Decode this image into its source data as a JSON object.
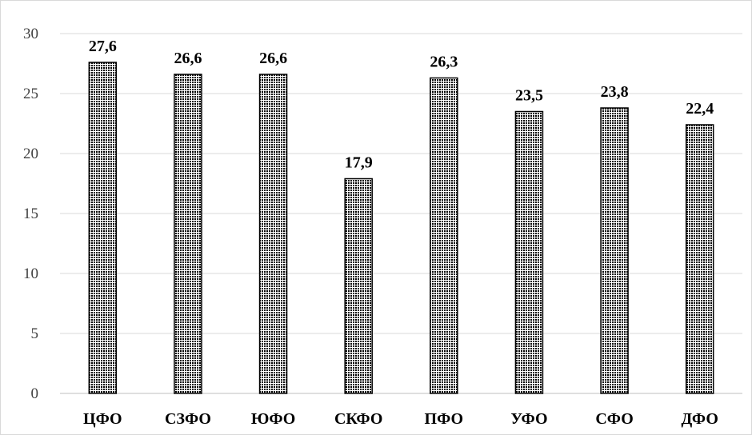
{
  "chart_data": {
    "type": "bar",
    "categories": [
      "ЦФО",
      "СЗФО",
      "ЮФО",
      "СКФО",
      "ПФО",
      "УФО",
      "СФО",
      "ДФО"
    ],
    "values": [
      27.6,
      26.6,
      26.6,
      17.9,
      26.3,
      23.5,
      23.8,
      22.4
    ],
    "value_labels": [
      "27,6",
      "26,6",
      "26,6",
      "17,9",
      "26,3",
      "23,5",
      "23,8",
      "22,4"
    ],
    "yticks": [
      "0",
      "5",
      "10",
      "15",
      "20",
      "25",
      "30"
    ],
    "ylim": [
      0,
      30
    ],
    "grid": true,
    "legend": false,
    "title": "",
    "xlabel": "",
    "ylabel": "",
    "colors": {
      "bar_fill": "#000000",
      "bar_pattern_bg": "#ffffff",
      "gridline": "#d9d9d9",
      "axis": "#bfbfbf"
    }
  }
}
